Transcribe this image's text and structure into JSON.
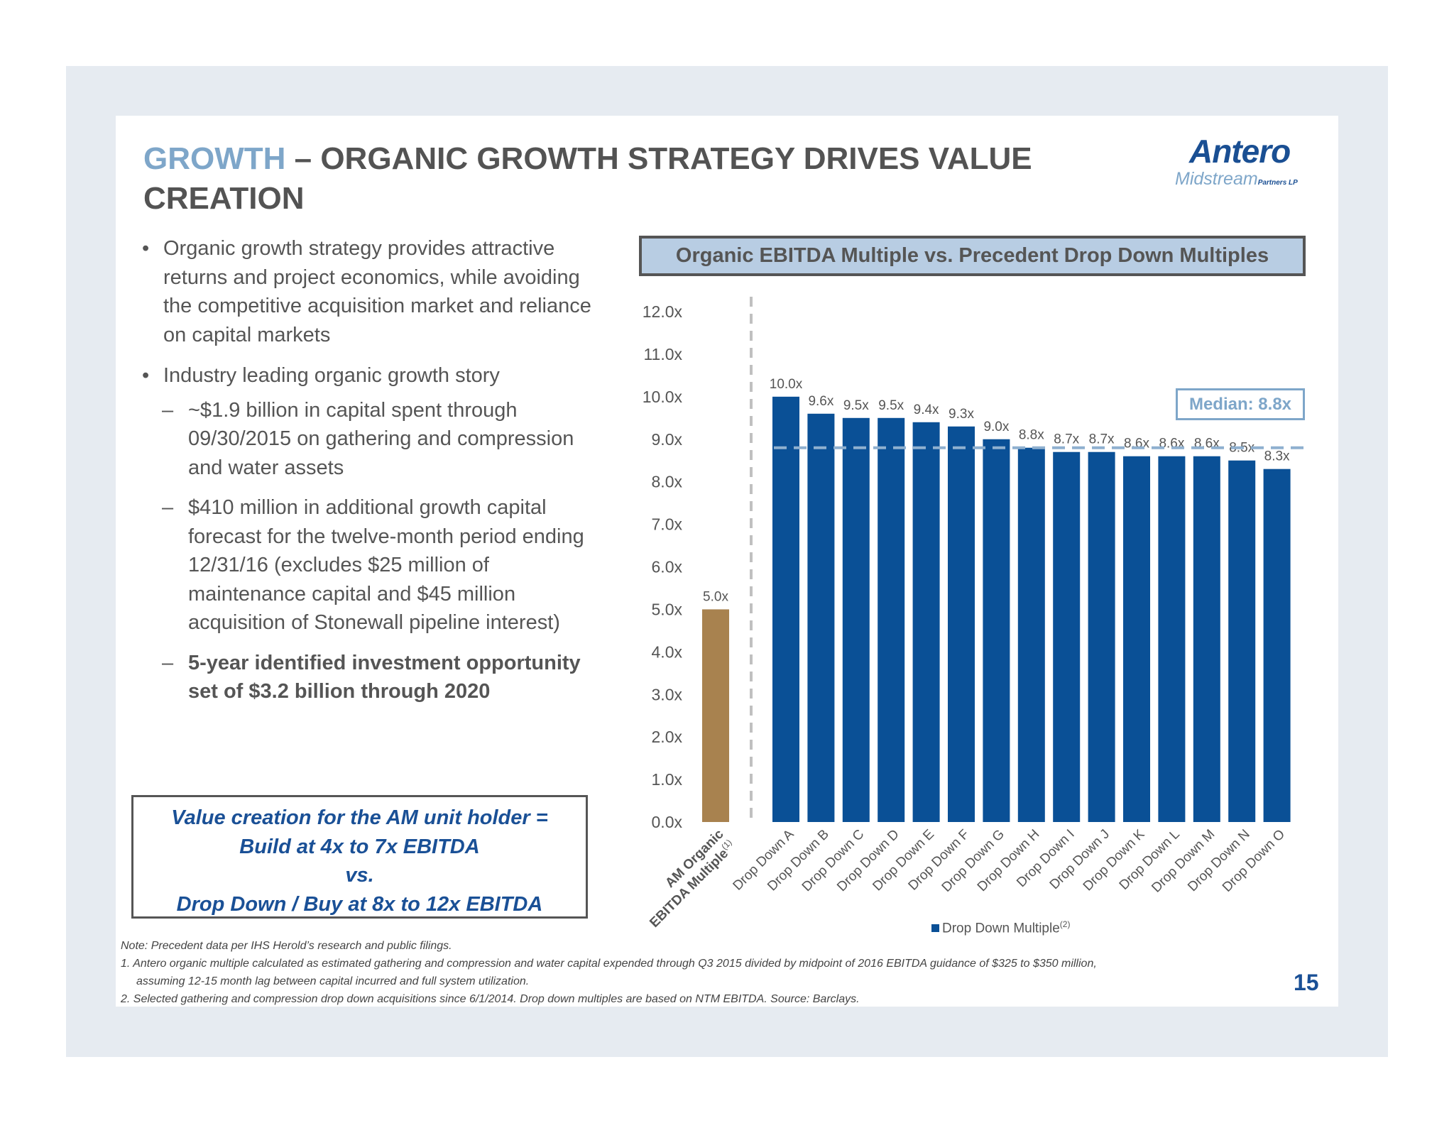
{
  "header": {
    "title_accent": "GROWTH",
    "title_rest": " – ORGANIC GROWTH STRATEGY DRIVES VALUE CREATION"
  },
  "logo": {
    "name": "Antero",
    "sub": "Midstream",
    "suffix": "Partners LP"
  },
  "bullets": [
    {
      "text": "Organic growth strategy provides attractive returns and project economics, while avoiding the competitive acquisition market and reliance on capital markets"
    },
    {
      "text": "Industry leading organic growth story",
      "sub": [
        {
          "text": "~$1.9 billion in capital spent through 09/30/2015 on gathering and compression and water assets",
          "bold": false
        },
        {
          "text": "$410 million in additional growth capital forecast for the twelve-month period ending 12/31/16 (excludes $25 million of maintenance capital and $45 million acquisition of Stonewall pipeline interest)",
          "bold": false
        },
        {
          "text": "5-year identified investment opportunity set of $3.2 billion through 2020",
          "bold": true
        }
      ]
    }
  ],
  "bullet_glyph": "•",
  "dash_glyph": "–",
  "value_box": {
    "lines": [
      "Value creation for the AM unit holder =",
      "Build at 4x to 7x EBITDA",
      "vs.",
      "Drop Down / Buy at 8x to 12x EBITDA"
    ]
  },
  "chart_data": {
    "type": "bar",
    "title": "Organic EBITDA Multiple vs. Precedent Drop Down Multiples",
    "categories": [
      "AM Organic EBITDA Multiple(1)",
      "Drop Down A",
      "Drop Down B",
      "Drop Down C",
      "Drop Down D",
      "Drop Down E",
      "Drop Down F",
      "Drop Down G",
      "Drop Down H",
      "Drop Down I",
      "Drop Down J",
      "Drop Down K",
      "Drop Down L",
      "Drop Down M",
      "Drop Down N",
      "Drop Down O"
    ],
    "values": [
      5.0,
      10.0,
      9.6,
      9.5,
      9.5,
      9.4,
      9.3,
      9.0,
      8.8,
      8.7,
      8.7,
      8.6,
      8.6,
      8.6,
      8.5,
      8.3
    ],
    "data_labels": [
      "5.0x",
      "10.0x",
      "9.6x",
      "9.5x",
      "9.5x",
      "9.4x",
      "9.3x",
      "9.0x",
      "8.8x",
      "8.7x",
      "8.7x",
      "8.6x",
      "8.6x",
      "8.6x",
      "8.5x",
      "8.3x"
    ],
    "colors": {
      "organic": "#a8824f",
      "drop_down": "#0a5096",
      "median_line": "#8fb0cf",
      "divider": "#c0c0c0"
    },
    "ylim": [
      0,
      12
    ],
    "yticks": [
      "0.0x",
      "1.0x",
      "2.0x",
      "3.0x",
      "4.0x",
      "5.0x",
      "6.0x",
      "7.0x",
      "8.0x",
      "9.0x",
      "10.0x",
      "11.0x",
      "12.0x"
    ],
    "median": {
      "value": 8.8,
      "label": "Median: 8.8x"
    },
    "legend": {
      "label": "Drop Down Multiple",
      "sup": "(2)",
      "placement": "bottom"
    },
    "grid": false
  },
  "notes": [
    "Note: Precedent data per IHS Herold’s research and public filings.",
    "1. Antero organic multiple calculated as estimated gathering and compression and water capital expended through Q3 2015 divided by midpoint of 2016 EBITDA guidance of $325 to $350 million,",
    "assuming 12-15 month lag between capital incurred and full system utilization.",
    "2. Selected gathering and compression drop down acquisitions since 6/1/2014. Drop down multiples are based on NTM EBITDA. Source: Barclays."
  ],
  "page_number": "15"
}
